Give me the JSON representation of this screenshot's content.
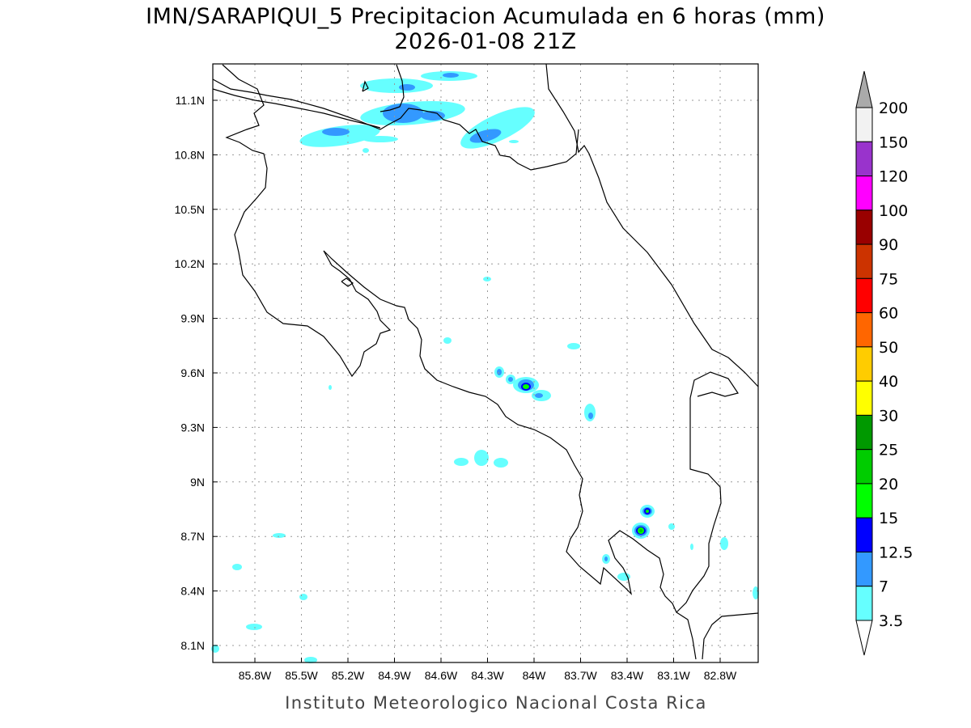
{
  "title": {
    "line1": "IMN/SARAPIQUI_5 Precipitacion Acumulada en 6 horas (mm)",
    "line2": "2026-01-08 21Z"
  },
  "map": {
    "lon_labels": [
      "85.8W",
      "85.5W",
      "85.2W",
      "84.9W",
      "84.6W",
      "84.3W",
      "84W",
      "83.7W",
      "83.4W",
      "83.1W",
      "82.8W"
    ],
    "lat_labels": [
      "11.1N",
      "10.8N",
      "10.5N",
      "10.2N",
      "9.9N",
      "9.6N",
      "9.3N",
      "9N",
      "8.7N",
      "8.4N",
      "8.1N"
    ]
  },
  "colorbar": {
    "labels": [
      "200",
      "150",
      "120",
      "100",
      "90",
      "75",
      "60",
      "50",
      "40",
      "30",
      "25",
      "20",
      "15",
      "12.5",
      "7",
      "3.5"
    ],
    "colors": [
      "#f2f2f2",
      "#9933cc",
      "#ff00ff",
      "#990000",
      "#cc3300",
      "#ff0000",
      "#ff6600",
      "#ffcc00",
      "#ffff00",
      "#009900",
      "#00cc00",
      "#00ff00",
      "#0000ff",
      "#3399ff",
      "#66ffff"
    ],
    "over_color": "#aaaaaa",
    "under_color": "#ffffff"
  },
  "credit": "Instituto Meteorologico Nacional Costa Rica"
}
